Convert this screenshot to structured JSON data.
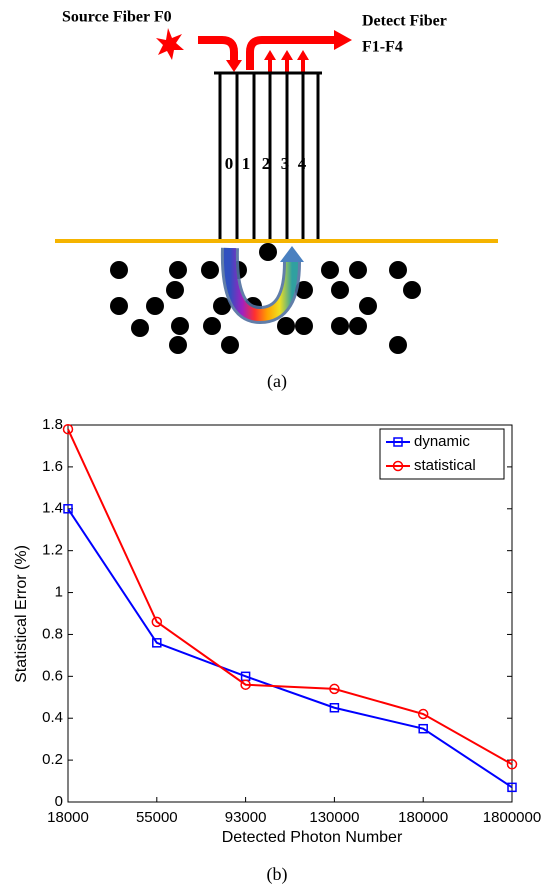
{
  "diagram": {
    "source_label": "Source Fiber F0",
    "detect_label": [
      "Detect Fiber",
      "F1-F4"
    ],
    "fiber_labels": [
      "0",
      "1",
      "2",
      "3",
      "4"
    ]
  },
  "captions": [
    "(a)",
    "(b)"
  ],
  "chart_data": {
    "type": "line",
    "x_label": "Detected Photon Number",
    "y_label": "Statistical Error (%)",
    "categories": [
      "18000",
      "55000",
      "93000",
      "130000",
      "180000",
      "1800000"
    ],
    "series": [
      {
        "name": "dynamic",
        "color": "#0000ff",
        "marker": "square",
        "values": [
          1.4,
          0.76,
          0.6,
          0.45,
          0.35,
          0.07
        ]
      },
      {
        "name": "statistical",
        "color": "#ff0000",
        "marker": "circle",
        "values": [
          1.78,
          0.86,
          0.56,
          0.54,
          0.42,
          0.18
        ]
      }
    ],
    "ylim": [
      0,
      1.8
    ],
    "yticks": [
      0,
      0.2,
      0.4,
      0.6,
      0.8,
      1,
      1.2,
      1.4,
      1.6,
      1.8
    ],
    "grid": false,
    "legend": "top-right"
  }
}
